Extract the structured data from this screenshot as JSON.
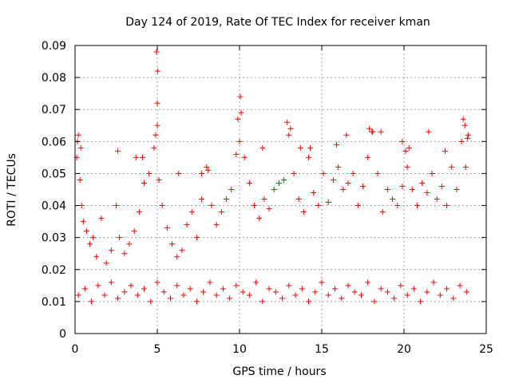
{
  "chart_data": {
    "type": "scatter",
    "title": "Day 124 of 2019, Rate Of TEC Index for receiver kman",
    "xlabel": "GPS time / hours",
    "ylabel": "ROTI / TECUs",
    "xlim": [
      0,
      25
    ],
    "ylim": [
      0,
      0.09
    ],
    "xticks": [
      "0",
      "5",
      "10",
      "15",
      "20",
      "25"
    ],
    "yticks": [
      "0",
      "0.01",
      "0.02",
      "0.03",
      "0.04",
      "0.05",
      "0.06",
      "0.07",
      "0.08",
      "0.09"
    ],
    "grid": true,
    "marker": "+",
    "series": [
      {
        "name": "ROTI",
        "color": "#ff0000",
        "x": [
          0.1,
          0.2,
          0.3,
          0.4,
          0.5,
          0.7,
          0.9,
          1.1,
          1.3,
          1.6,
          1.9,
          2.2,
          2.5,
          2.7,
          3.0,
          3.3,
          3.6,
          3.9,
          4.2,
          4.5,
          4.8,
          4.9,
          5.0,
          5.0,
          5.1,
          5.3,
          5.6,
          5.9,
          6.2,
          6.5,
          6.8,
          7.1,
          7.4,
          7.7,
          8.0,
          8.3,
          8.6,
          8.9,
          9.2,
          9.5,
          9.8,
          10.0,
          10.1,
          10.3,
          10.6,
          10.9,
          11.2,
          11.5,
          11.8,
          12.1,
          12.4,
          12.7,
          13.0,
          13.3,
          13.6,
          13.9,
          14.2,
          14.5,
          14.8,
          15.1,
          15.4,
          15.7,
          16.0,
          16.3,
          16.6,
          16.9,
          17.2,
          17.5,
          17.8,
          18.1,
          18.4,
          18.7,
          19.0,
          19.3,
          19.6,
          19.9,
          20.2,
          20.5,
          20.8,
          21.1,
          21.4,
          21.7,
          22.0,
          22.3,
          22.6,
          22.9,
          23.2,
          23.5,
          23.7,
          23.9,
          0.2,
          0.6,
          1.0,
          1.4,
          1.8,
          2.2,
          2.6,
          3.0,
          3.4,
          3.8,
          4.2,
          4.6,
          5.0,
          5.4,
          5.8,
          6.2,
          6.6,
          7.0,
          7.4,
          7.8,
          8.2,
          8.6,
          9.0,
          9.4,
          9.8,
          10.2,
          10.6,
          11.0,
          11.4,
          11.8,
          12.2,
          12.6,
          13.0,
          13.4,
          13.8,
          14.2,
          14.6,
          15.0,
          15.4,
          15.8,
          16.2,
          16.6,
          17.0,
          17.4,
          17.8,
          18.2,
          18.6,
          19.0,
          19.4,
          19.8,
          20.2,
          20.6,
          21.0,
          21.4,
          21.8,
          22.2,
          22.6,
          23.0,
          23.4,
          23.8,
          0.15,
          0.35,
          2.6,
          4.1,
          4.95,
          5.02,
          9.9,
          10.05,
          12.9,
          13.1,
          14.3,
          16.5,
          17.9,
          18.05,
          19.9,
          20.1,
          21.5,
          22.5,
          23.6,
          23.85,
          23.75,
          3.7,
          8.1,
          11.4,
          15.9,
          18.6,
          20.3,
          6.3,
          7.7,
          13.7
        ],
        "y": [
          0.055,
          0.062,
          0.048,
          0.04,
          0.035,
          0.032,
          0.028,
          0.03,
          0.024,
          0.036,
          0.022,
          0.026,
          0.04,
          0.03,
          0.025,
          0.028,
          0.032,
          0.038,
          0.047,
          0.05,
          0.058,
          0.062,
          0.065,
          0.072,
          0.048,
          0.04,
          0.033,
          0.028,
          0.024,
          0.026,
          0.034,
          0.038,
          0.03,
          0.042,
          0.052,
          0.04,
          0.034,
          0.038,
          0.042,
          0.045,
          0.056,
          0.06,
          0.069,
          0.055,
          0.047,
          0.04,
          0.036,
          0.042,
          0.039,
          0.045,
          0.047,
          0.048,
          0.062,
          0.05,
          0.042,
          0.038,
          0.055,
          0.044,
          0.04,
          0.05,
          0.041,
          0.048,
          0.052,
          0.045,
          0.047,
          0.05,
          0.04,
          0.046,
          0.055,
          0.063,
          0.05,
          0.038,
          0.045,
          0.042,
          0.04,
          0.046,
          0.052,
          0.045,
          0.04,
          0.047,
          0.044,
          0.05,
          0.042,
          0.046,
          0.04,
          0.052,
          0.045,
          0.06,
          0.065,
          0.062,
          0.012,
          0.014,
          0.01,
          0.015,
          0.012,
          0.016,
          0.011,
          0.013,
          0.015,
          0.012,
          0.014,
          0.01,
          0.016,
          0.013,
          0.011,
          0.015,
          0.012,
          0.014,
          0.01,
          0.013,
          0.016,
          0.012,
          0.014,
          0.011,
          0.015,
          0.013,
          0.012,
          0.016,
          0.01,
          0.014,
          0.013,
          0.011,
          0.015,
          0.012,
          0.014,
          0.01,
          0.013,
          0.016,
          0.012,
          0.014,
          0.011,
          0.015,
          0.013,
          0.012,
          0.016,
          0.01,
          0.014,
          0.013,
          0.011,
          0.015,
          0.012,
          0.014,
          0.01,
          0.013,
          0.016,
          0.012,
          0.014,
          0.011,
          0.015,
          0.013,
          0.06,
          0.058,
          0.057,
          0.055,
          0.088,
          0.082,
          0.067,
          0.074,
          0.066,
          0.064,
          0.058,
          0.062,
          0.064,
          0.063,
          0.06,
          0.057,
          0.063,
          0.057,
          0.067,
          0.061,
          0.052,
          0.055,
          0.051,
          0.058,
          0.059,
          0.063,
          0.058,
          0.05,
          0.05,
          0.058
        ]
      }
    ]
  }
}
